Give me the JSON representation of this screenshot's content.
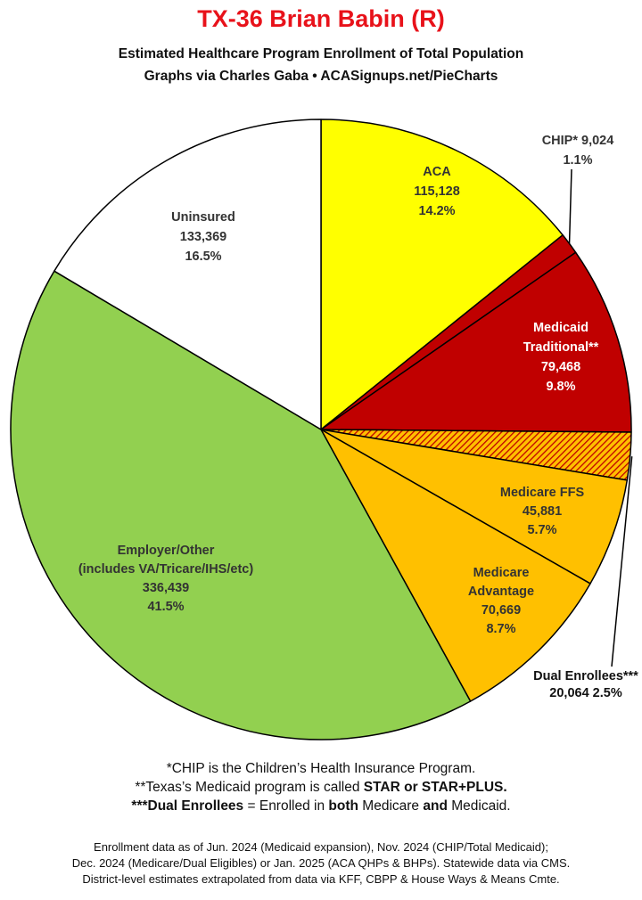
{
  "header": {
    "title": "TX-36 Brian Babin (R)",
    "subtitle1": "Estimated Healthcare Program Enrollment of Total Population",
    "subtitle2": "Graphs via Charles Gaba  •  ACASignups.net/PieCharts"
  },
  "chart_data": {
    "type": "pie",
    "title": "TX-36 Brian Babin (R)",
    "start": "12 o'clock",
    "direction": "clockwise",
    "slices": [
      {
        "label": "ACA",
        "value": 115128,
        "percent": "14.2%",
        "color": "#ffff00",
        "pattern": "none",
        "text_color": "#333333"
      },
      {
        "label": "CHIP*",
        "value": 9024,
        "percent": "1.1%",
        "color": "#c00000",
        "pattern": "none",
        "text_color": "#333333"
      },
      {
        "label": "Medicaid Traditional**",
        "value": 79468,
        "percent": "9.8%",
        "color": "#c00000",
        "pattern": "none",
        "text_color": "#ffffff"
      },
      {
        "label": "Dual Enrollees***",
        "value": 20064,
        "percent": "2.5%",
        "color": "#ffc000",
        "pattern": "red-diagonal-hatch",
        "text_color": "#111111"
      },
      {
        "label": "Medicare FFS",
        "value": 45881,
        "percent": "5.7%",
        "color": "#ffc000",
        "pattern": "none",
        "text_color": "#333333"
      },
      {
        "label": "Medicare Advantage",
        "value": 70669,
        "percent": "8.7%",
        "color": "#ffc000",
        "pattern": "none",
        "text_color": "#333333"
      },
      {
        "label": "Employer/Other (includes VA/Tricare/IHS/etc)",
        "value": 336439,
        "percent": "41.5%",
        "color": "#92d050",
        "pattern": "none",
        "text_color": "#333333"
      },
      {
        "label": "Uninsured",
        "value": 133369,
        "percent": "16.5%",
        "color": "#ffffff",
        "pattern": "none",
        "text_color": "#333333"
      }
    ],
    "labels": {
      "aca": [
        "ACA",
        "115,128",
        "14.2%"
      ],
      "chip": [
        "CHIP* 9,024",
        "1.1%"
      ],
      "medicaid": [
        "Medicaid",
        "Traditional**",
        "79,468",
        "9.8%"
      ],
      "dual": [
        "Dual Enrollees***",
        "20,064 2.5%"
      ],
      "medicare_ffs": [
        "Medicare FFS",
        "45,881",
        "5.7%"
      ],
      "medicare_adv": [
        "Medicare",
        "Advantage",
        "70,669",
        "8.7%"
      ],
      "employer": [
        "Employer/Other",
        "(includes VA/Tricare/IHS/etc)",
        "336,439",
        "41.5%"
      ],
      "uninsured": [
        "Uninsured",
        "133,369",
        "16.5%"
      ]
    }
  },
  "footnotes": {
    "chip_note": "*CHIP is the Children’s Health Insurance Program.",
    "medicaid_note_prefix": "**Texas’s Medicaid program is called ",
    "medicaid_note_bold": "STAR or STAR+PLUS.",
    "dual_note_bold1": "***Dual Enrollees",
    "dual_note_mid1": " = Enrolled in ",
    "dual_note_bold2": "both",
    "dual_note_mid2": " Medicare ",
    "dual_note_bold3": "and",
    "dual_note_end": " Medicaid."
  },
  "source": {
    "line1": "Enrollment data as of Jun. 2024 (Medicaid expansion), Nov. 2024 (CHIP/Total Medicaid);",
    "line2": "Dec. 2024 (Medicare/Dual Eligibles) or Jan. 2025 (ACA QHPs & BHPs). Statewide data via CMS.",
    "line3": "District-level estimates extrapolated from data via KFF, CBPP & House Ways & Means Cmte."
  }
}
